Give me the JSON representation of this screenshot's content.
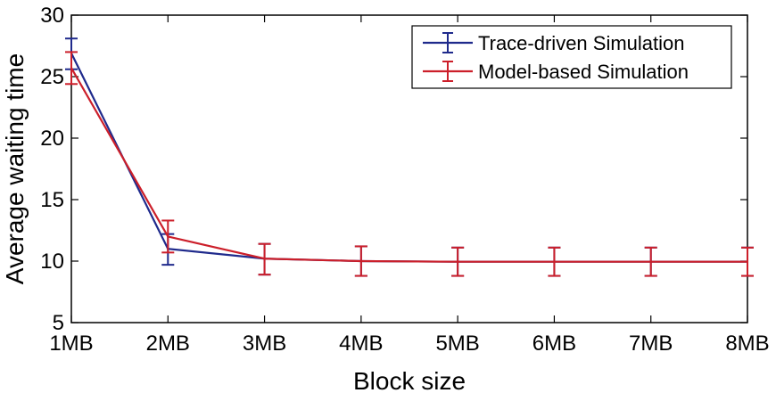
{
  "chart_data": {
    "type": "line",
    "categories": [
      "1MB",
      "2MB",
      "3MB",
      "4MB",
      "5MB",
      "6MB",
      "7MB",
      "8MB"
    ],
    "xlabel": "Block size",
    "ylabel": "Average waiting time",
    "ylim": [
      5,
      30
    ],
    "yticks": [
      5,
      10,
      15,
      20,
      25,
      30
    ],
    "grid": false,
    "legend_position": "top-right",
    "series": [
      {
        "name": "Trace-driven Simulation",
        "color": "#1f2a8c",
        "values": [
          26.9,
          11.0,
          10.2,
          10.0,
          9.95,
          9.95,
          9.95,
          9.95
        ],
        "err_low": [
          25.6,
          9.7,
          8.9,
          8.8,
          8.8,
          8.8,
          8.8,
          8.8
        ],
        "err_high": [
          28.1,
          12.2,
          11.4,
          11.2,
          11.1,
          11.1,
          11.1,
          11.1
        ]
      },
      {
        "name": "Model-based Simulation",
        "color": "#cc1f2a",
        "values": [
          25.7,
          12.0,
          10.2,
          10.0,
          9.95,
          9.95,
          9.95,
          9.95
        ],
        "err_low": [
          24.4,
          10.7,
          8.9,
          8.8,
          8.8,
          8.8,
          8.8,
          8.8
        ],
        "err_high": [
          27.0,
          13.3,
          11.4,
          11.2,
          11.1,
          11.1,
          11.1,
          11.1
        ]
      }
    ]
  }
}
